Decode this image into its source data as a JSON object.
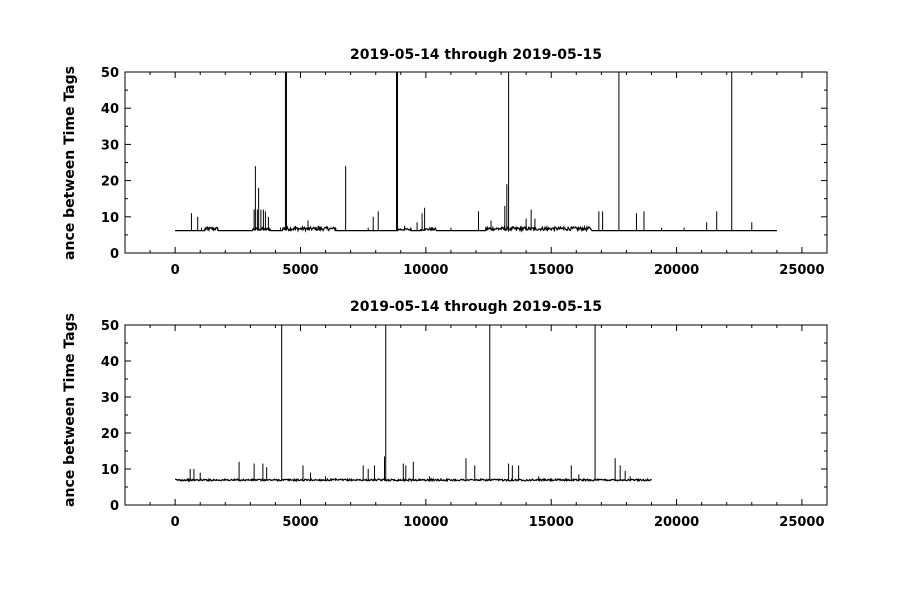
{
  "chart_data": [
    {
      "type": "line",
      "title": "2019-05-14 through 2019-05-15",
      "ylabel": "ance between Time Tags",
      "xlabel": "",
      "xlim": [
        -2000,
        26000
      ],
      "ylim": [
        0,
        50
      ],
      "xticks": [
        0,
        5000,
        10000,
        15000,
        20000,
        25000
      ],
      "yticks": [
        0,
        10,
        20,
        30,
        40,
        50
      ],
      "baseline": 6.2,
      "x_end": 24000,
      "grid": false,
      "spikes": [
        {
          "x": 650,
          "y": 11
        },
        {
          "x": 900,
          "y": 10
        },
        {
          "x": 1050,
          "y": 7
        },
        {
          "x": 1300,
          "y": 7.2
        },
        {
          "x": 1700,
          "y": 7
        },
        {
          "x": 3150,
          "y": 12
        },
        {
          "x": 3200,
          "y": 24
        },
        {
          "x": 3280,
          "y": 12
        },
        {
          "x": 3330,
          "y": 18
        },
        {
          "x": 3420,
          "y": 12
        },
        {
          "x": 3520,
          "y": 12
        },
        {
          "x": 3600,
          "y": 11.5
        },
        {
          "x": 3720,
          "y": 10
        },
        {
          "x": 4200,
          "y": 7
        },
        {
          "x": 4400,
          "y": 50
        },
        {
          "x": 4440,
          "y": 50
        },
        {
          "x": 4800,
          "y": 7.5
        },
        {
          "x": 5300,
          "y": 9
        },
        {
          "x": 5700,
          "y": 7.5
        },
        {
          "x": 6100,
          "y": 7
        },
        {
          "x": 6800,
          "y": 24
        },
        {
          "x": 7700,
          "y": 7
        },
        {
          "x": 7900,
          "y": 10
        },
        {
          "x": 8100,
          "y": 11.5
        },
        {
          "x": 8830,
          "y": 50
        },
        {
          "x": 8870,
          "y": 50
        },
        {
          "x": 9150,
          "y": 7.5
        },
        {
          "x": 9650,
          "y": 8.5
        },
        {
          "x": 9850,
          "y": 11
        },
        {
          "x": 9950,
          "y": 12.5
        },
        {
          "x": 10200,
          "y": 7
        },
        {
          "x": 11000,
          "y": 7
        },
        {
          "x": 12100,
          "y": 11.5
        },
        {
          "x": 12600,
          "y": 9
        },
        {
          "x": 12900,
          "y": 7
        },
        {
          "x": 13150,
          "y": 13
        },
        {
          "x": 13230,
          "y": 19
        },
        {
          "x": 13300,
          "y": 50
        },
        {
          "x": 13600,
          "y": 7
        },
        {
          "x": 13800,
          "y": 7.5
        },
        {
          "x": 14000,
          "y": 9.5
        },
        {
          "x": 14200,
          "y": 12
        },
        {
          "x": 14350,
          "y": 9.5
        },
        {
          "x": 14800,
          "y": 7.5
        },
        {
          "x": 15500,
          "y": 7.5
        },
        {
          "x": 16100,
          "y": 7
        },
        {
          "x": 16900,
          "y": 11.5
        },
        {
          "x": 17050,
          "y": 11.5
        },
        {
          "x": 17700,
          "y": 50
        },
        {
          "x": 18400,
          "y": 11
        },
        {
          "x": 18700,
          "y": 11.5
        },
        {
          "x": 19400,
          "y": 7
        },
        {
          "x": 20300,
          "y": 7
        },
        {
          "x": 21200,
          "y": 8.5
        },
        {
          "x": 21600,
          "y": 11.5
        },
        {
          "x": 22200,
          "y": 50
        },
        {
          "x": 23000,
          "y": 8.5
        }
      ],
      "noisy_ranges": [
        [
          1200,
          1700,
          1.0
        ],
        [
          3100,
          3800,
          0.8
        ],
        [
          4300,
          6400,
          1.0
        ],
        [
          8900,
          9400,
          0.6
        ],
        [
          9800,
          10400,
          0.7
        ],
        [
          12400,
          16600,
          1.0
        ]
      ]
    },
    {
      "type": "line",
      "title": "2019-05-14 through 2019-05-15",
      "ylabel": "ance between Time Tags",
      "xlabel": "",
      "xlim": [
        -2000,
        26000
      ],
      "ylim": [
        0,
        50
      ],
      "xticks": [
        0,
        5000,
        10000,
        15000,
        20000,
        25000
      ],
      "yticks": [
        0,
        10,
        20,
        30,
        40,
        50
      ],
      "baseline": 6.7,
      "x_end": 19000,
      "grid": false,
      "spikes": [
        {
          "x": 600,
          "y": 10
        },
        {
          "x": 750,
          "y": 10
        },
        {
          "x": 1000,
          "y": 9
        },
        {
          "x": 2550,
          "y": 12
        },
        {
          "x": 3150,
          "y": 11.5
        },
        {
          "x": 3500,
          "y": 11.5
        },
        {
          "x": 3650,
          "y": 10.5
        },
        {
          "x": 4250,
          "y": 50
        },
        {
          "x": 5100,
          "y": 11
        },
        {
          "x": 5400,
          "y": 9
        },
        {
          "x": 6000,
          "y": 8
        },
        {
          "x": 6400,
          "y": 7.5
        },
        {
          "x": 7500,
          "y": 11
        },
        {
          "x": 7700,
          "y": 10
        },
        {
          "x": 7950,
          "y": 11
        },
        {
          "x": 8350,
          "y": 13.5
        },
        {
          "x": 8400,
          "y": 50
        },
        {
          "x": 9100,
          "y": 11.5
        },
        {
          "x": 9200,
          "y": 11
        },
        {
          "x": 9500,
          "y": 12
        },
        {
          "x": 10150,
          "y": 8
        },
        {
          "x": 10600,
          "y": 7.5
        },
        {
          "x": 11600,
          "y": 13
        },
        {
          "x": 11950,
          "y": 11
        },
        {
          "x": 12550,
          "y": 50
        },
        {
          "x": 13300,
          "y": 11.5
        },
        {
          "x": 13450,
          "y": 11
        },
        {
          "x": 13700,
          "y": 11
        },
        {
          "x": 14500,
          "y": 8
        },
        {
          "x": 15800,
          "y": 11
        },
        {
          "x": 16100,
          "y": 8.5
        },
        {
          "x": 16750,
          "y": 50
        },
        {
          "x": 17550,
          "y": 13
        },
        {
          "x": 17750,
          "y": 11
        },
        {
          "x": 17950,
          "y": 9.5
        },
        {
          "x": 18150,
          "y": 8
        }
      ],
      "noisy_ranges": [
        [
          0,
          19000,
          0.5
        ]
      ]
    }
  ]
}
